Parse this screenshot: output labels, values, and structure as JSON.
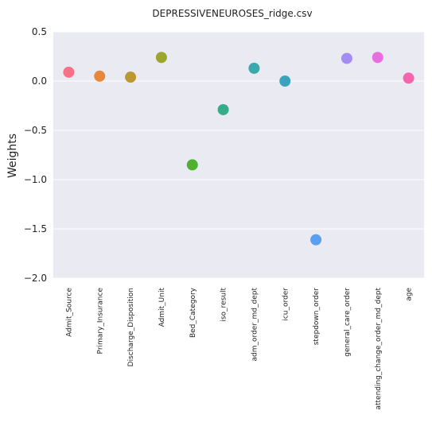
{
  "chart_data": {
    "type": "scatter",
    "title": "DEPRESSIVENEUROSES_ridge.csv",
    "xlabel": "",
    "ylabel": "Weights",
    "ylim": [
      -2.0,
      0.5
    ],
    "yticks": [
      "0.5",
      "0.0",
      "−0.5",
      "−1.0",
      "−1.5",
      "−2.0"
    ],
    "grid": true,
    "categories": [
      "Admit_Source",
      "Primary_Insurance",
      "Discharge_Disposition",
      "Admit_Unit",
      "Bed_Category",
      "iso_result",
      "adm_order_md_dept",
      "icu_order",
      "stepdown_order",
      "general_care_order",
      "attending_change_order_md_dept",
      "age"
    ],
    "values": [
      0.09,
      0.05,
      0.04,
      0.24,
      -0.85,
      -0.29,
      0.13,
      0.0,
      -1.61,
      0.23,
      0.24,
      0.03
    ],
    "colors": [
      "#f77189",
      "#e7873b",
      "#bb9832",
      "#9ca530",
      "#50b131",
      "#36ad89",
      "#38aaac",
      "#3ba3be",
      "#5aa0f0",
      "#a48cf4",
      "#e86fe0",
      "#f565ad"
    ],
    "background": "#eaeaf2"
  }
}
